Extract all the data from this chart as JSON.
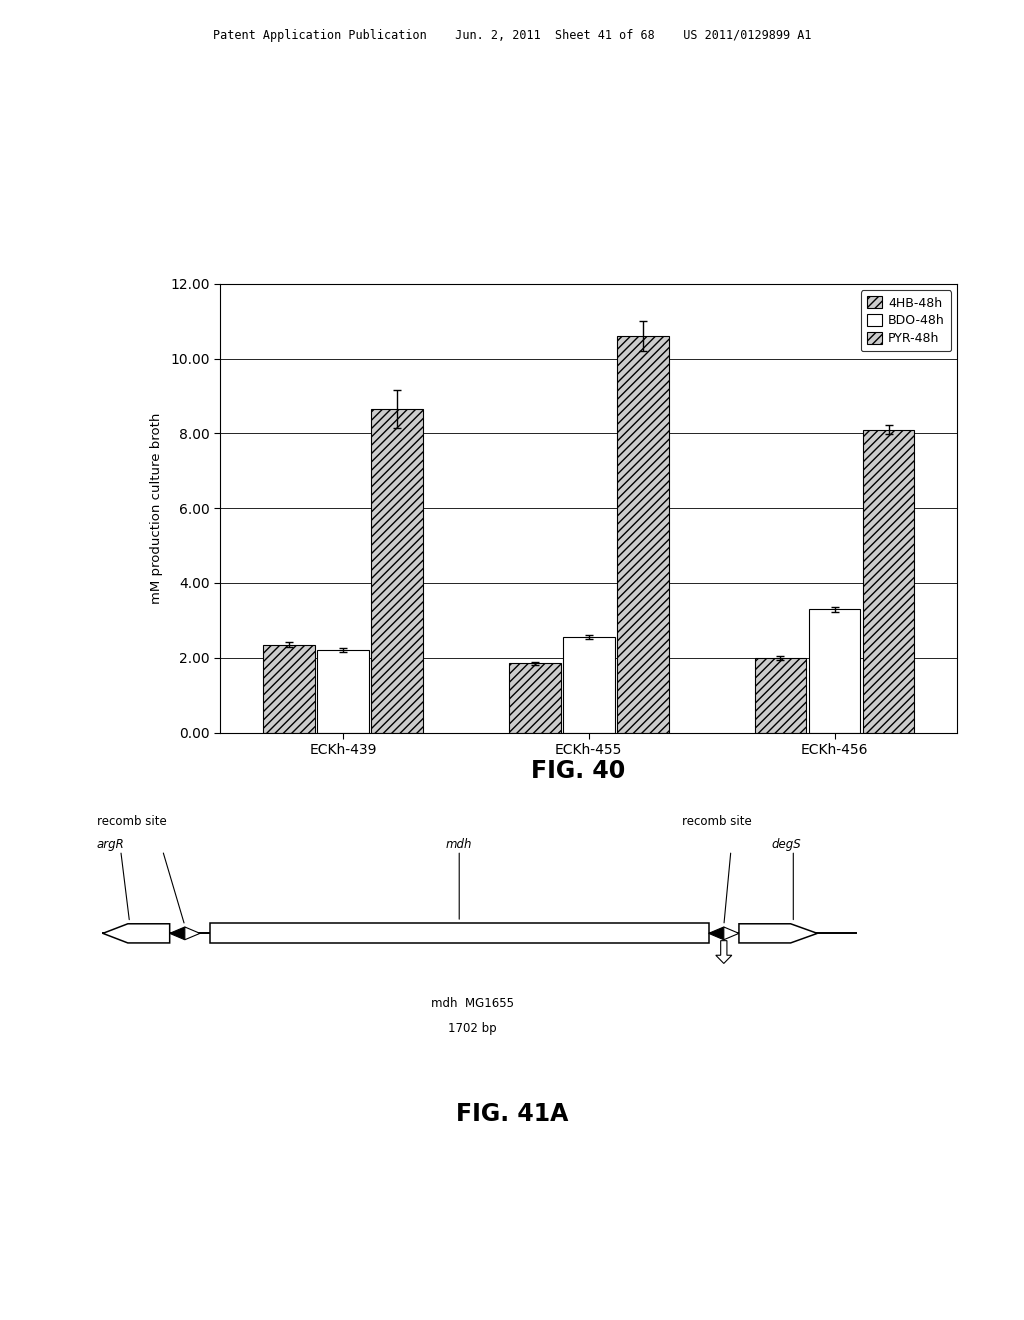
{
  "bar_groups": [
    "ECKh-439",
    "ECKh-455",
    "ECKh-456"
  ],
  "series": [
    {
      "label": "4HB-48h",
      "values": [
        2.35,
        1.85,
        2.0
      ],
      "errors": [
        0.07,
        0.05,
        0.06
      ]
    },
    {
      "label": "BDO-48h",
      "values": [
        2.2,
        2.55,
        3.3
      ],
      "errors": [
        0.05,
        0.05,
        0.07
      ]
    },
    {
      "label": "PYR-48h",
      "values": [
        8.65,
        10.6,
        8.1
      ],
      "errors": [
        0.5,
        0.4,
        0.12
      ]
    }
  ],
  "ylabel": "mM production culture broth",
  "ylim": [
    0,
    12.0
  ],
  "yticks": [
    0.0,
    2.0,
    4.0,
    6.0,
    8.0,
    10.0,
    12.0
  ],
  "fig40_title": "FIG. 40",
  "fig41a_title": "FIG. 41A",
  "header_text": "Patent Application Publication    Jun. 2, 2011  Sheet 41 of 68    US 2011/0129899 A1",
  "background_color": "#ffffff",
  "hatch_styles": [
    "////",
    "",
    "////"
  ],
  "face_colors": [
    "#cccccc",
    "#ffffff",
    "#cccccc"
  ],
  "bar_width": 0.22,
  "diagram": {
    "left_label_top": "recomb site",
    "left_label_bot": "argR",
    "center_label": "mdh",
    "right_label_top": "recomb site",
    "right_label_right": "degS",
    "bottom_label1": "mdh  MG1655",
    "bottom_label2": "1702 bp"
  }
}
